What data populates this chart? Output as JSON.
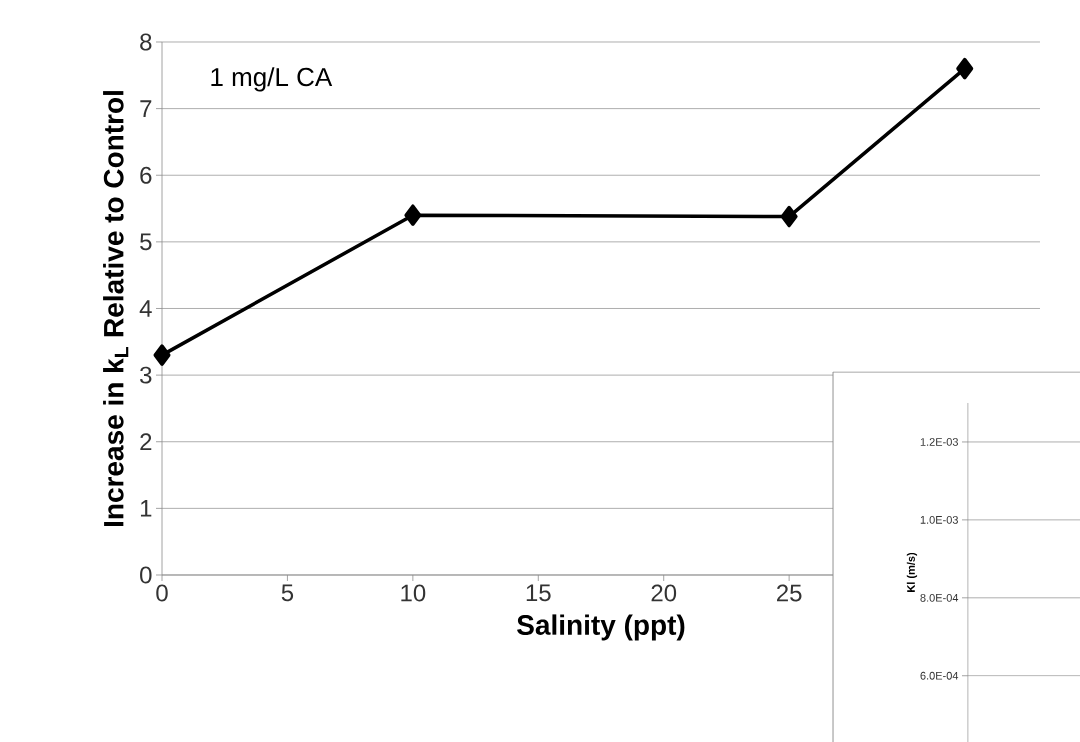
{
  "chart_data": [
    {
      "type": "line",
      "xlabel": "Salinity (ppt)",
      "ylabel": "Increase in k$_{L}$ Relative to Control",
      "annotations": [
        "1 mg/L CA"
      ],
      "x": [
        0,
        10,
        25,
        32
      ],
      "values": [
        3.3,
        5.4,
        5.38,
        7.6
      ],
      "color": "#000000",
      "marker": "diamond",
      "line_style": "solid",
      "xlim": [
        0,
        35
      ],
      "xticks": [
        0,
        5,
        10,
        15,
        20,
        25
      ],
      "ylim": [
        0,
        8
      ],
      "yticks": [
        0,
        1,
        2,
        3,
        4,
        5,
        6,
        7,
        8
      ],
      "grid": "y"
    },
    {
      "type": "line",
      "ylabel": "Kl (m/s)",
      "categories": [
        null
      ],
      "values": [
        null
      ],
      "color": "#000000",
      "ylim": [
        0.00043,
        0.0013
      ],
      "yticks": [
        {
          "value": 0.0006,
          "label": "6.0E-04"
        },
        {
          "value": 0.0008,
          "label": "8.0E-04"
        },
        {
          "value": 0.001,
          "label": "1.0E-03"
        },
        {
          "value": 0.0012,
          "label": "1.2E-03"
        }
      ],
      "grid": "y",
      "tick_labels": "y"
    }
  ]
}
